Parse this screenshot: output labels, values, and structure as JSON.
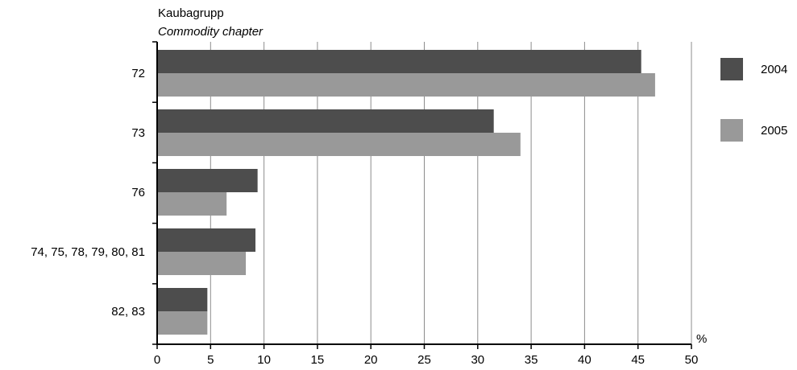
{
  "chart_data": {
    "type": "bar",
    "orientation": "horizontal",
    "title": "Kaubagrupp",
    "subtitle": "Commodity chapter",
    "categories": [
      "72",
      "73",
      "76",
      "74, 75, 78, 79, 80, 81",
      "82, 83"
    ],
    "series": [
      {
        "name": "2004",
        "values": [
          45.3,
          31.5,
          9.4,
          9.2,
          4.7
        ],
        "color": "#4d4d4d"
      },
      {
        "name": "2005",
        "values": [
          46.6,
          34.0,
          6.5,
          8.3,
          4.7
        ],
        "color": "#999999"
      }
    ],
    "xlabel": "%",
    "xlim": [
      0,
      50
    ],
    "xticks": [
      "0",
      "5",
      "10",
      "15",
      "20",
      "25",
      "30",
      "35",
      "40",
      "45",
      "50"
    ],
    "grid": true,
    "legend_position": "right"
  }
}
